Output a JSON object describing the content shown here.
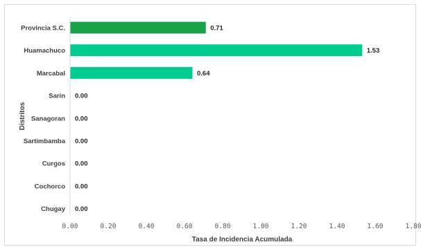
{
  "chart_data": {
    "type": "bar",
    "orientation": "horizontal",
    "categories": [
      "Provincia S.C.",
      "Huamachuco",
      "Marcabal",
      "Sarin",
      "Sanagoran",
      "Sartimbamba",
      "Curgos",
      "Cochorco",
      "Chugay"
    ],
    "values": [
      0.71,
      1.53,
      0.64,
      0.0,
      0.0,
      0.0,
      0.0,
      0.0,
      0.0
    ],
    "value_labels": [
      "0.71",
      "1.53",
      "0.64",
      "0.00",
      "0.00",
      "0.00",
      "0.00",
      "0.00",
      "0.00"
    ],
    "bar_colors": [
      "#1aa34a",
      "#00cc8f",
      "#00cc8f",
      "#00cc8f",
      "#00cc8f",
      "#00cc8f",
      "#00cc8f",
      "#00cc8f",
      "#00cc8f"
    ],
    "xlabel": "Tasa de Incidencia Acumulada",
    "ylabel": "Distritos",
    "xlim": [
      0,
      1.8
    ],
    "xticks": [
      "0.00",
      "0.20",
      "0.40",
      "0.60",
      "0.80",
      "1.00",
      "1.20",
      "1.40",
      "1.60",
      "1.80"
    ],
    "grid": false,
    "legend": "none"
  }
}
